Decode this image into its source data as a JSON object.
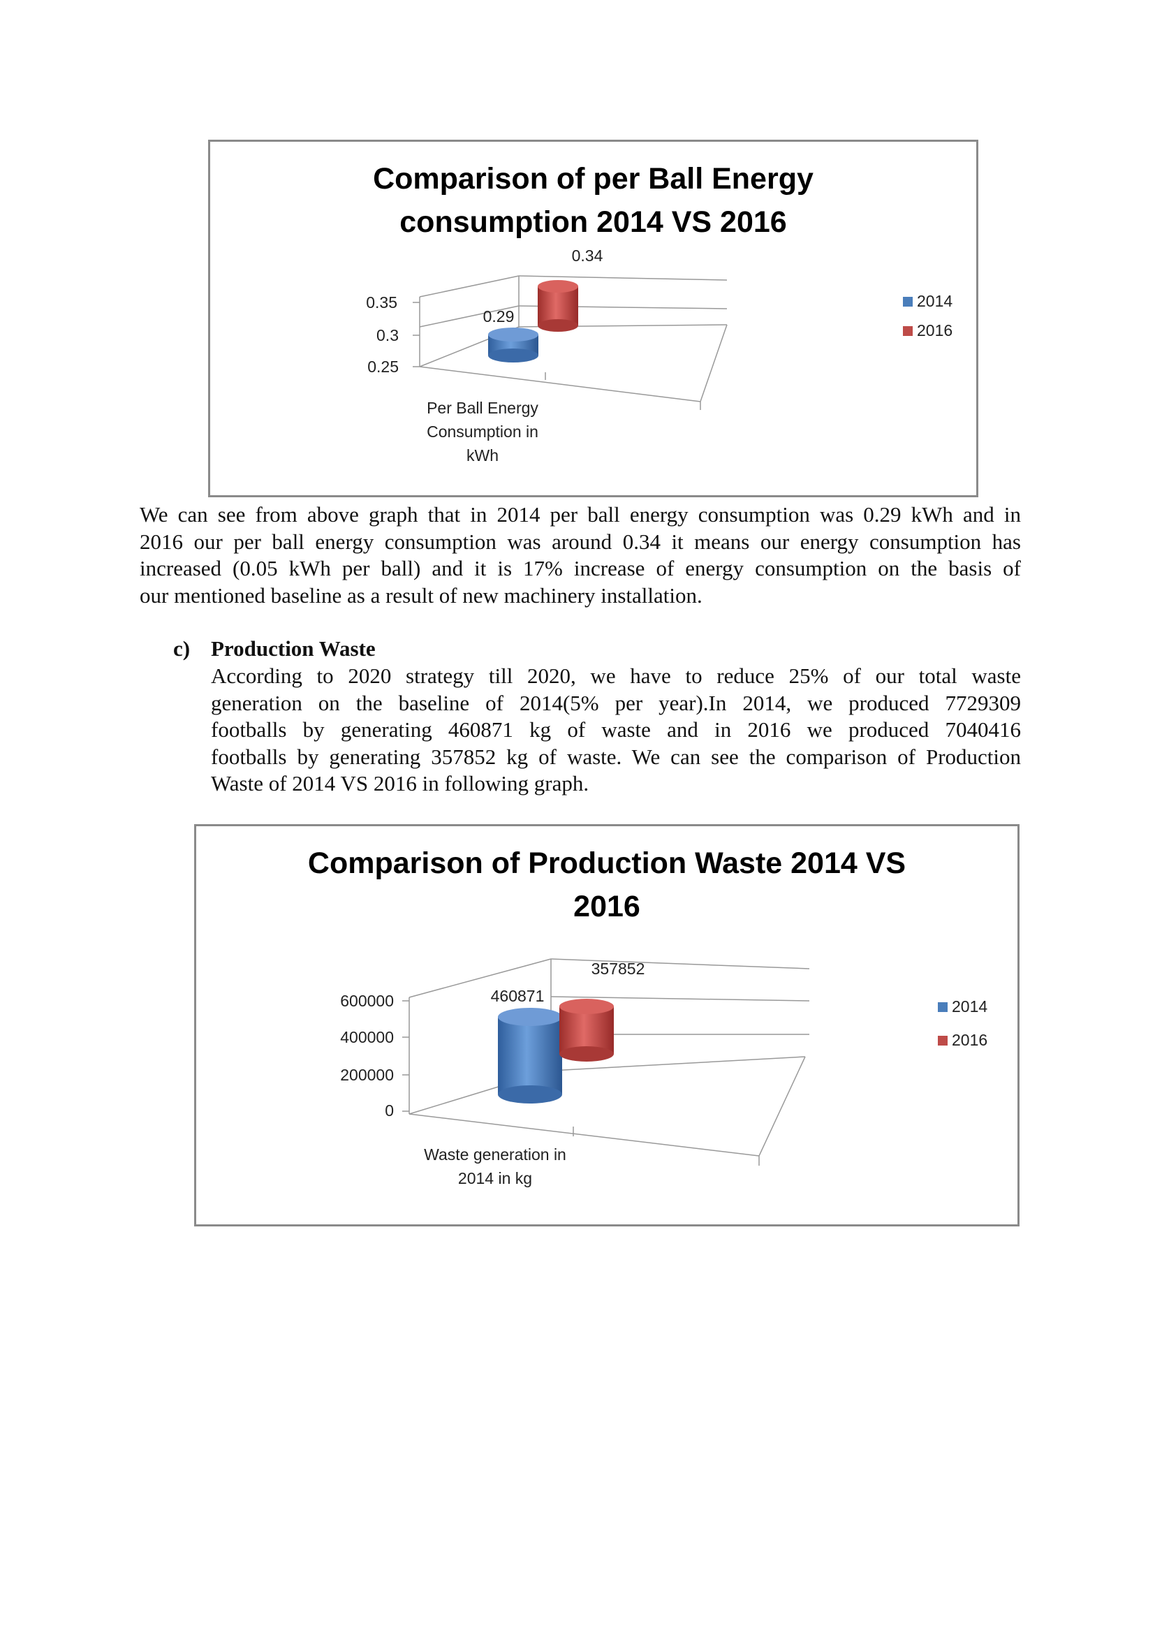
{
  "chart_data": [
    {
      "type": "bar",
      "title_lines": [
        "Comparison of per Ball Energy",
        "consumption 2014 VS 2016"
      ],
      "categories": [
        "Per Ball Energy Consumption  in kWh"
      ],
      "category_label_lines": [
        "Per Ball Energy",
        "Consumption  in",
        "kWh"
      ],
      "series": [
        {
          "name": "2014",
          "values": [
            0.29
          ],
          "color": "#4a7ebb"
        },
        {
          "name": "2016",
          "values": [
            0.34
          ],
          "color": "#be4b48"
        }
      ],
      "data_labels": [
        "0.29",
        "0.34"
      ],
      "y_ticks": [
        "0.35",
        "0.3",
        "0.25"
      ],
      "ylim": [
        0.25,
        0.35
      ],
      "legend": "right",
      "style": "3d-cylinder"
    },
    {
      "type": "bar",
      "title_lines": [
        "Comparison of Production Waste 2014 VS",
        "2016"
      ],
      "categories": [
        "Waste generation in 2014 in kg"
      ],
      "category_label_lines": [
        "Waste generation in",
        "2014 in kg"
      ],
      "series": [
        {
          "name": "2014",
          "values": [
            460871
          ],
          "color": "#4a7ebb"
        },
        {
          "name": "2016",
          "values": [
            357852
          ],
          "color": "#be4b48"
        }
      ],
      "data_labels": [
        "460871",
        "357852"
      ],
      "y_ticks": [
        "600000",
        "400000",
        "200000",
        "0"
      ],
      "ylim": [
        0,
        600000
      ],
      "legend": "right",
      "style": "3d-cylinder"
    }
  ],
  "paragraph1_lines": [
    "We can see from above graph that in 2014 per ball energy consumption was 0.29 kWh and in",
    "2016 our per ball energy consumption was around 0.34 it means our energy consumption has",
    "increased (0.05 kWh per ball) and it is 17% increase of energy consumption on the basis of",
    "our mentioned baseline as a result of new machinery installation."
  ],
  "section_c": {
    "number": "c)",
    "heading": "Production Waste"
  },
  "paragraph2_lines": [
    "According to 2020 strategy till 2020, we have to reduce 25% of our total waste",
    "generation on the baseline of 2014(5% per year).In 2014, we produced 7729309",
    "footballs by generating 460871 kg of waste and in 2016 we produced 7040416",
    "footballs by generating 357852 kg of waste. We can see the comparison of Production",
    "Waste of 2014 VS 2016 in following graph."
  ]
}
